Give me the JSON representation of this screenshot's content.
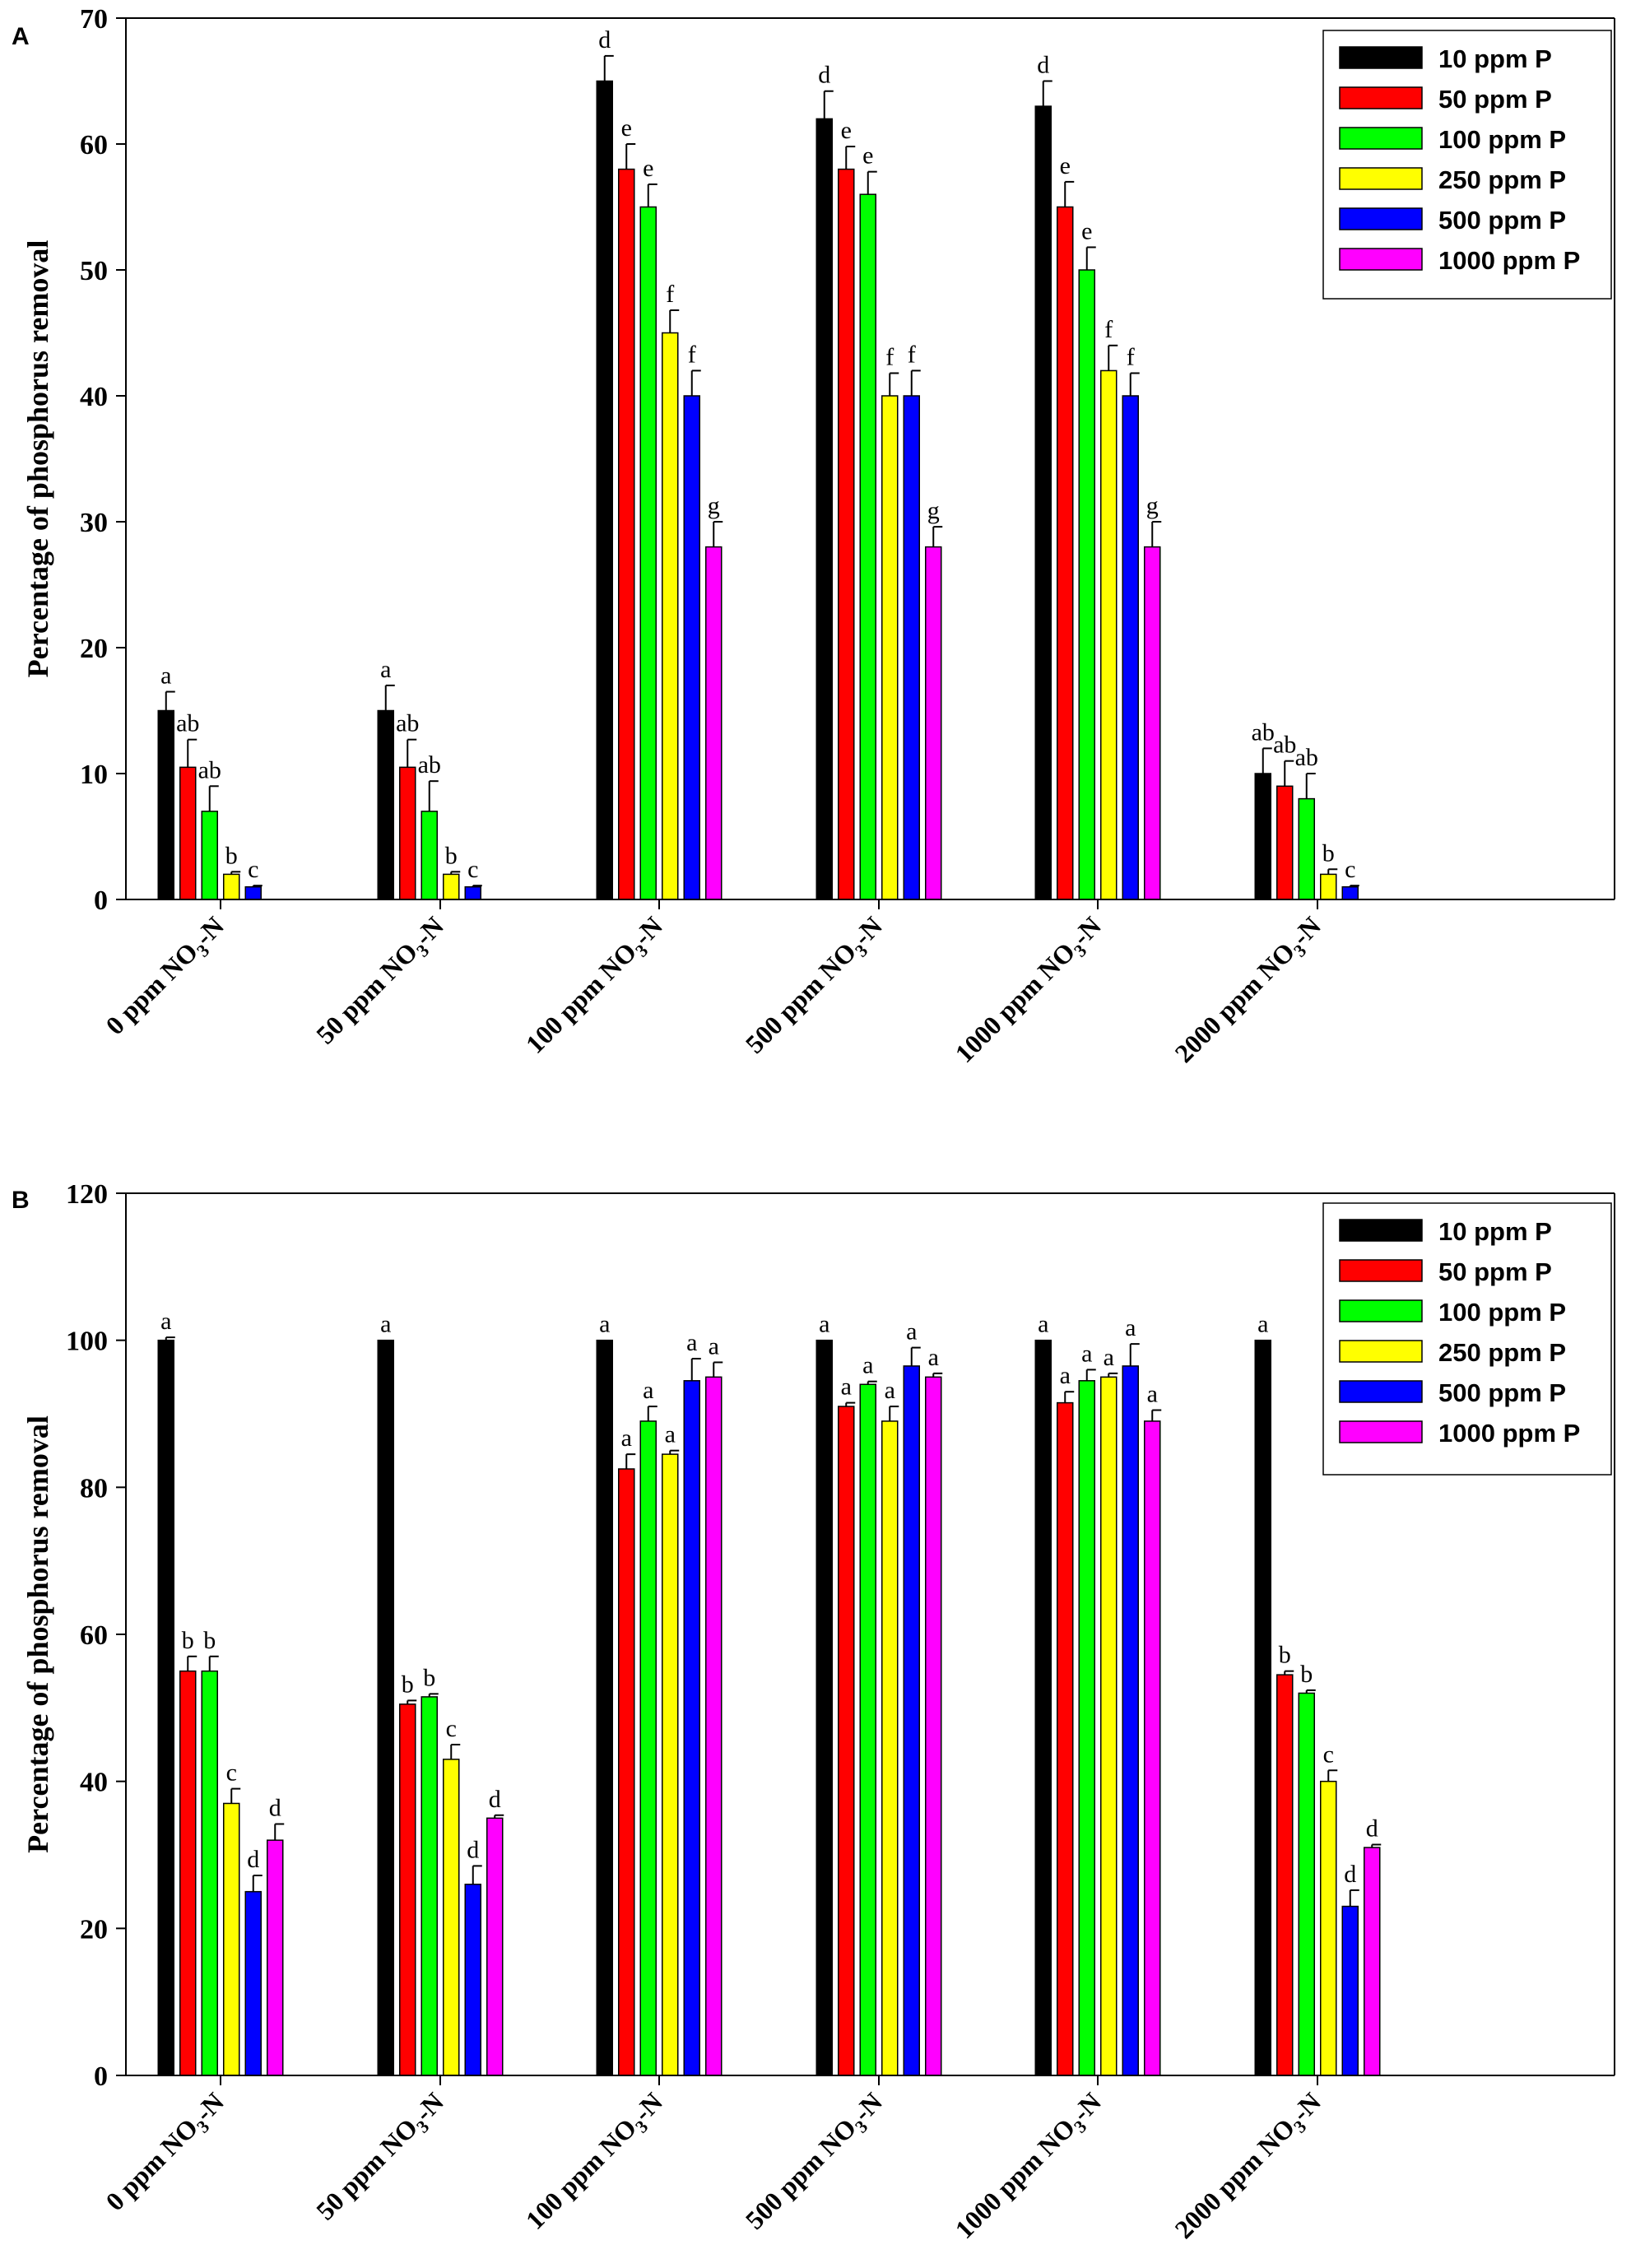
{
  "chart_data": [
    {
      "panel": "A",
      "type": "bar",
      "ylabel": "Percentage of phosphorus removal",
      "ylim": [
        0,
        70
      ],
      "ytick_step": 10,
      "yticks": [
        "0",
        "10",
        "20",
        "30",
        "40",
        "50",
        "60",
        "70"
      ],
      "legend_position": "top-right",
      "categories": [
        "0 ppm NO3-N",
        "50 ppm NO3-N",
        "100 ppm NO3-N",
        "500 ppm NO3-N",
        "1000 ppm NO3-N",
        "2000 ppm NO3-N"
      ],
      "series": [
        {
          "name": "10 ppm P",
          "color": "#000000",
          "values": [
            15,
            15,
            65,
            62,
            63,
            10
          ],
          "errors": [
            1.5,
            2,
            2,
            2.2,
            2,
            2
          ],
          "labels": [
            "a",
            "a",
            "d",
            "d",
            "d",
            "ab"
          ]
        },
        {
          "name": "50 ppm P",
          "color": "#ff0000",
          "values": [
            10.5,
            10.5,
            58,
            58,
            55,
            9
          ],
          "errors": [
            2.2,
            2.2,
            2,
            1.8,
            2,
            2
          ],
          "labels": [
            "ab",
            "ab",
            "e",
            "e",
            "e",
            "ab"
          ]
        },
        {
          "name": "100 ppm P",
          "color": "#00ff00",
          "values": [
            7,
            7,
            55,
            56,
            50,
            8
          ],
          "errors": [
            2,
            2.4,
            1.8,
            1.8,
            1.8,
            2
          ],
          "labels": [
            "ab",
            "ab",
            "e",
            "e",
            "e",
            "ab"
          ]
        },
        {
          "name": "250 ppm P",
          "color": "#ffff00",
          "values": [
            2,
            2,
            45,
            40,
            42,
            2
          ],
          "errors": [
            0.2,
            0.2,
            1.8,
            1.8,
            2,
            0.4
          ],
          "labels": [
            "b",
            "b",
            "f",
            "f",
            "f",
            "b"
          ]
        },
        {
          "name": "500 ppm P",
          "color": "#0000ff",
          "values": [
            1,
            1,
            40,
            40,
            40,
            1
          ],
          "errors": [
            0.1,
            0.1,
            2,
            2,
            1.8,
            0.1
          ],
          "labels": [
            "c",
            "c",
            "f",
            "f",
            "f",
            "c"
          ]
        },
        {
          "name": "1000 ppm P",
          "color": "#ff00ff",
          "values": [
            0,
            0,
            28,
            28,
            28,
            0
          ],
          "errors": [
            0,
            0,
            2,
            1.6,
            2,
            0
          ],
          "labels": [
            "",
            "",
            "g",
            "g",
            "g",
            ""
          ]
        }
      ]
    },
    {
      "panel": "B",
      "type": "bar",
      "ylabel": "Percentage of phosphorus removal",
      "ylim": [
        0,
        120
      ],
      "ytick_step": 20,
      "yticks": [
        "0",
        "20",
        "40",
        "60",
        "80",
        "100",
        "120"
      ],
      "legend_position": "top-right",
      "categories": [
        "0 ppm NO3-N",
        "50 ppm NO3-N",
        "100 ppm NO3-N",
        "500 ppm NO3-N",
        "1000 ppm NO3-N",
        "2000 ppm NO3-N"
      ],
      "series": [
        {
          "name": "10 ppm P",
          "color": "#000000",
          "values": [
            100,
            100,
            100,
            100,
            100,
            100
          ],
          "errors": [
            0.4,
            0,
            0,
            0,
            0,
            0
          ],
          "labels": [
            "a",
            "a",
            "a",
            "a",
            "a",
            "a"
          ]
        },
        {
          "name": "50 ppm P",
          "color": "#ff0000",
          "values": [
            55,
            50.5,
            82.5,
            91,
            91.5,
            54.5
          ],
          "errors": [
            2,
            0.5,
            2,
            0.5,
            1.5,
            0.5
          ],
          "labels": [
            "b",
            "b",
            "a",
            "a",
            "a",
            "b"
          ]
        },
        {
          "name": "100 ppm P",
          "color": "#00ff00",
          "values": [
            55,
            51.5,
            89,
            94,
            94.5,
            52
          ],
          "errors": [
            2,
            0.4,
            2,
            0.4,
            1.5,
            0.4
          ],
          "labels": [
            "b",
            "b",
            "a",
            "a",
            "a",
            "b"
          ]
        },
        {
          "name": "250 ppm P",
          "color": "#ffff00",
          "values": [
            37,
            43,
            84.5,
            89,
            95,
            40
          ],
          "errors": [
            2,
            2,
            0.5,
            2,
            0.5,
            1.5
          ],
          "labels": [
            "c",
            "c",
            "a",
            "a",
            "a",
            "c"
          ]
        },
        {
          "name": "500 ppm P",
          "color": "#0000ff",
          "values": [
            25,
            26,
            94.5,
            96.5,
            96.5,
            23
          ],
          "errors": [
            2.2,
            2.5,
            3,
            2.5,
            3,
            2.2
          ],
          "labels": [
            "d",
            "d",
            "a",
            "a",
            "a",
            "d"
          ]
        },
        {
          "name": "1000 ppm P",
          "color": "#ff00ff",
          "values": [
            32,
            35,
            95,
            95,
            89,
            31
          ],
          "errors": [
            2.2,
            0.4,
            2,
            0.5,
            1.5,
            0.4
          ],
          "labels": [
            "d",
            "d",
            "a",
            "a",
            "a",
            "d"
          ]
        }
      ]
    }
  ],
  "cat_parts": [
    {
      "pre": "0 ppm NO",
      "sub": "3",
      "post": "-N"
    },
    {
      "pre": "50 ppm NO",
      "sub": "3",
      "post": "-N"
    },
    {
      "pre": "100 ppm NO",
      "sub": "3",
      "post": "-N"
    },
    {
      "pre": "500 ppm NO",
      "sub": "3",
      "post": "-N"
    },
    {
      "pre": "1000 ppm NO",
      "sub": "3",
      "post": "-N"
    },
    {
      "pre": "2000 ppm NO",
      "sub": "3",
      "post": "-N"
    }
  ]
}
